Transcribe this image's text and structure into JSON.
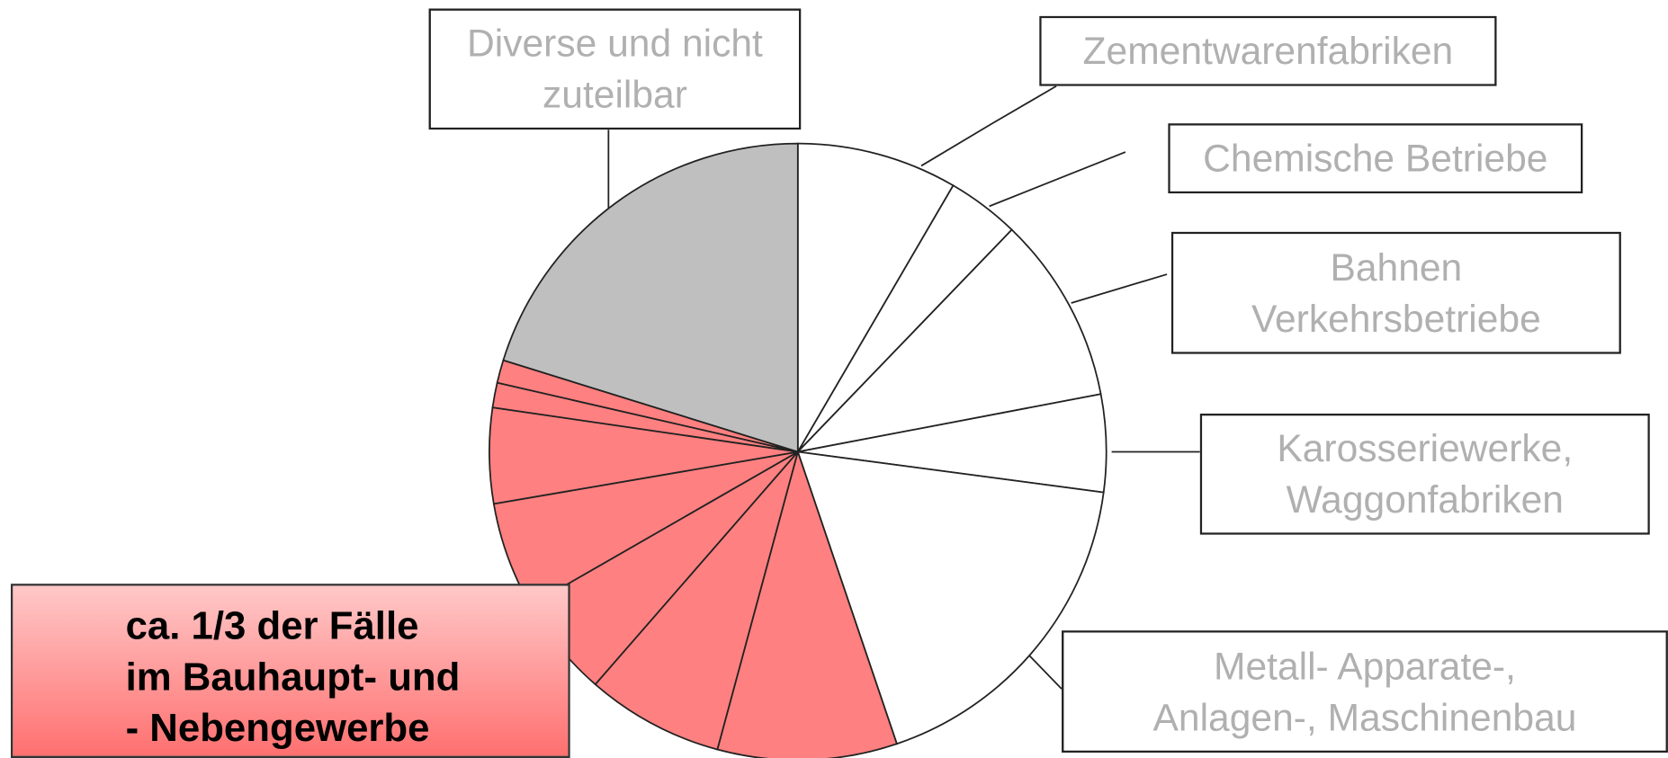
{
  "chart_data": {
    "type": "pie",
    "categories": [
      "Zementwarenfabriken",
      "Chemische Betriebe",
      "Bahnen\nVerkehrsbetriebe",
      "Karosseriewerke,\nWaggonfabriken",
      "Metall- Apparate-,\nAnlagen-, Maschinenbau",
      null,
      null,
      null,
      null,
      null,
      null,
      null,
      "Diverse und nicht\nzuteilbar"
    ],
    "values": [
      8.4,
      3.8,
      9.8,
      5.1,
      17.7,
      9.4,
      7.2,
      5.3,
      5.6,
      5.0,
      1.3,
      1.2,
      20.2
    ],
    "colors": [
      "#ffffff",
      "#ffffff",
      "#ffffff",
      "#ffffff",
      "#ffffff",
      "#ff8080",
      "#ff8080",
      "#ff8080",
      "#ff8080",
      "#ff8080",
      "#ff8080",
      "#ff8080",
      "#bfbfbf"
    ],
    "annotation": [
      "ca. 1/3  der Fälle",
      "im Bauhaupt- und",
      "- Nebengewerbe"
    ]
  }
}
